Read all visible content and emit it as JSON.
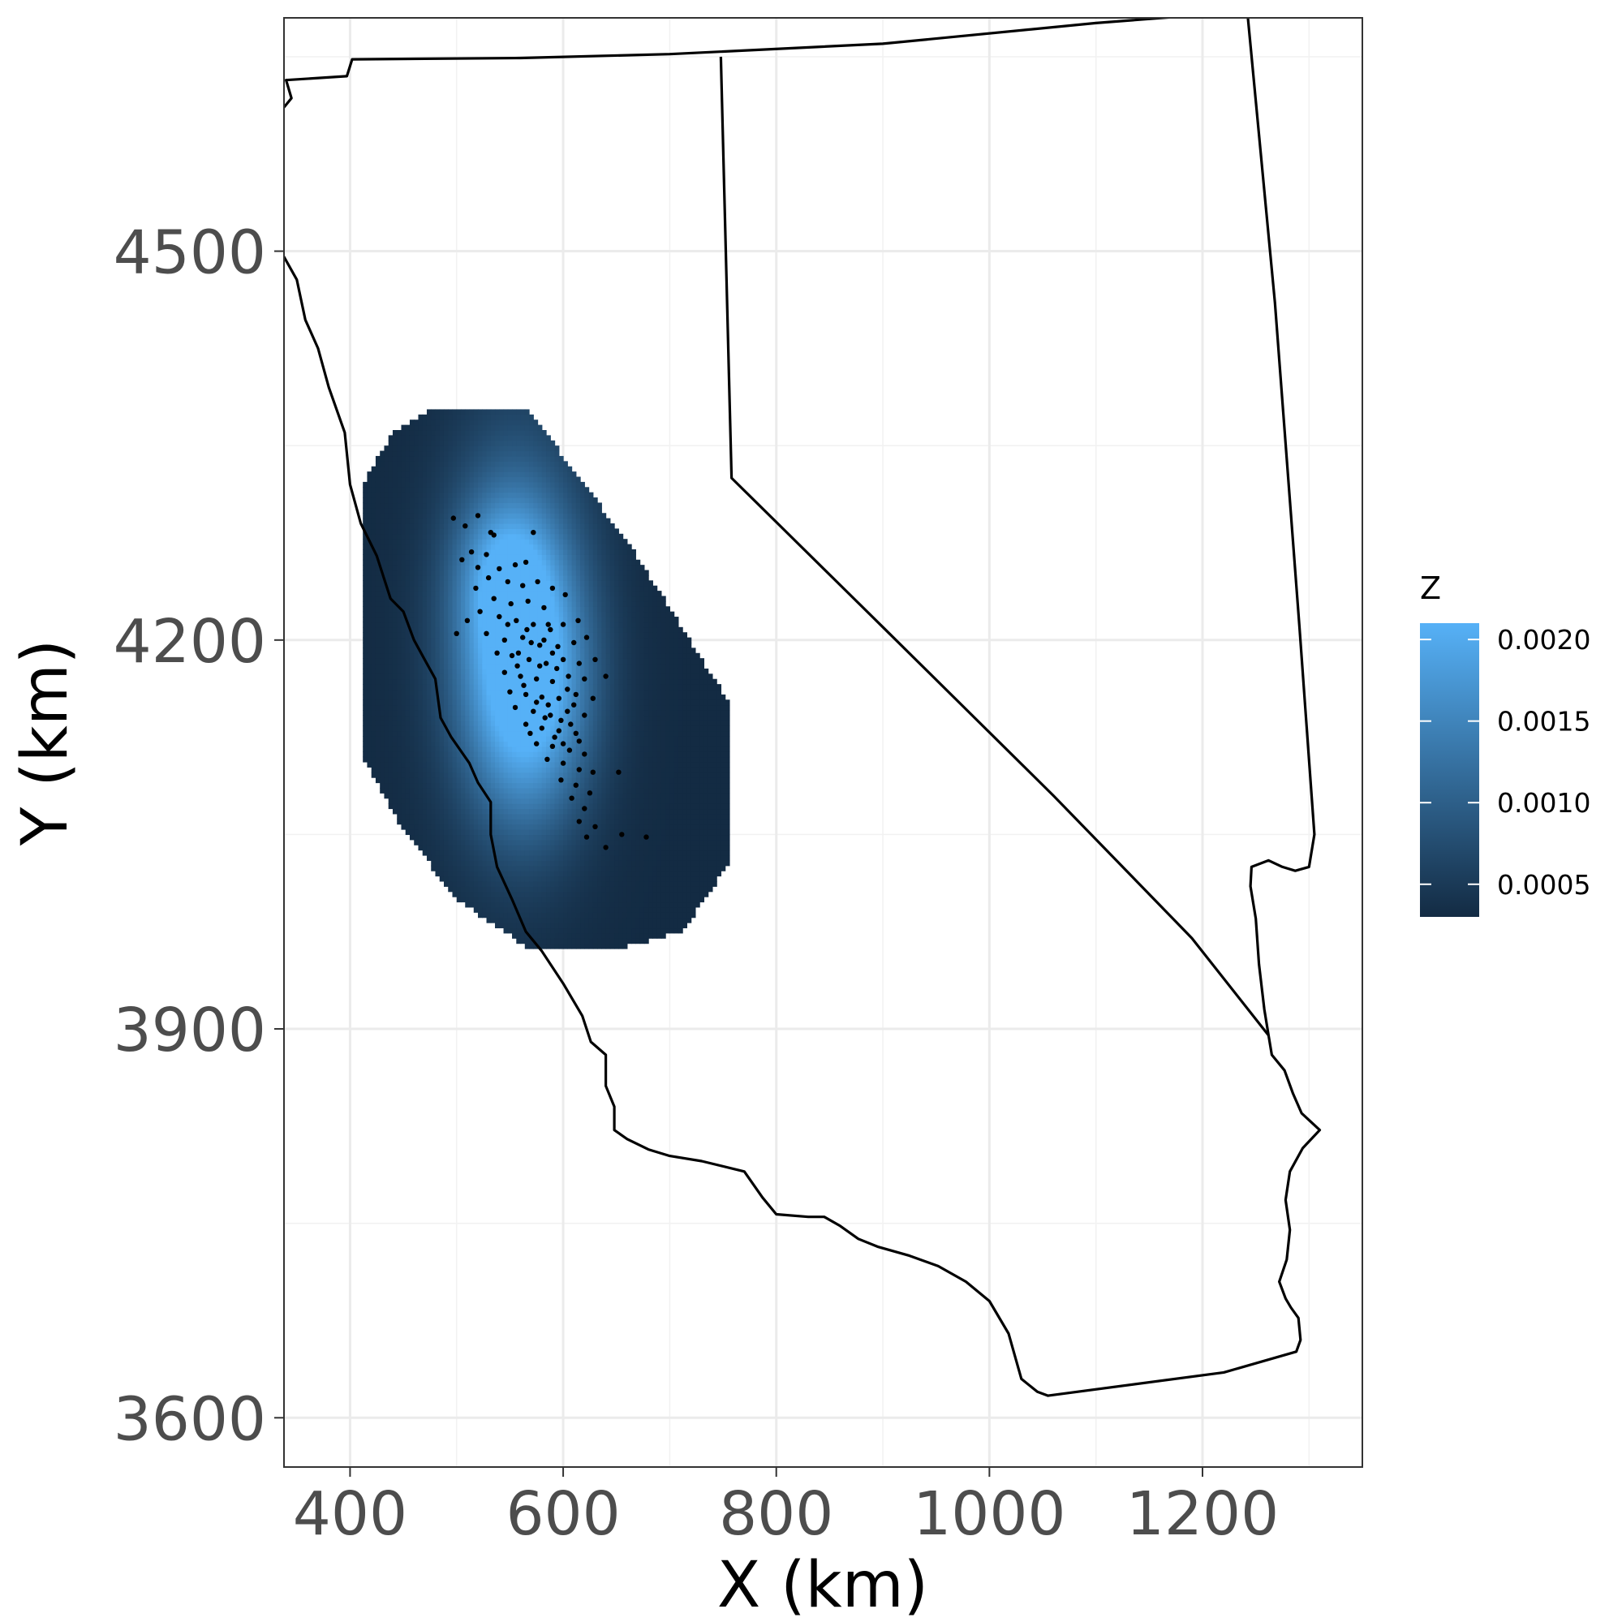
{
  "chart_data": {
    "type": "heatmap",
    "title": "",
    "xlabel": "X (km)",
    "ylabel": "Y (km)",
    "xlim": [
      338,
      1350
    ],
    "ylim": [
      3562,
      4680
    ],
    "x_ticks": [
      400,
      600,
      800,
      1000,
      1200
    ],
    "x_tick_labels": [
      "400",
      "600",
      "800",
      "1000",
      "1200"
    ],
    "y_ticks": [
      3600,
      3900,
      4200,
      4500
    ],
    "y_tick_labels": [
      "3600",
      "3900",
      "4200",
      "4500"
    ],
    "grid": true,
    "legend": {
      "title": "Z",
      "position": "right",
      "range": [
        0.0003,
        0.0021
      ],
      "breaks": [
        0.002,
        0.0015,
        0.001,
        0.0005
      ],
      "labels": [
        "0.0020",
        "0.0015",
        "0.0010",
        "0.0005"
      ],
      "low_color": "#132b43",
      "high_color": "#56b1f7"
    },
    "surface": {
      "region": [
        [
          480,
          4380
        ],
        [
          565,
          4380
        ],
        [
          665,
          4270
        ],
        [
          757,
          4150
        ],
        [
          757,
          4030
        ],
        [
          712,
          3975
        ],
        [
          650,
          3962
        ],
        [
          568,
          3962
        ],
        [
          500,
          4000
        ],
        [
          445,
          4060
        ],
        [
          412,
          4110
        ],
        [
          412,
          4320
        ],
        [
          440,
          4360
        ]
      ],
      "peaks": [
        {
          "x": 555,
          "y": 4210,
          "z": 0.0021,
          "spread_x": 45,
          "spread_y": 100
        },
        {
          "x": 570,
          "y": 4160,
          "z": 0.0019,
          "spread_x": 40,
          "spread_y": 70
        },
        {
          "x": 545,
          "y": 4250,
          "z": 0.0012,
          "spread_x": 30,
          "spread_y": 40
        }
      ],
      "base_z": 0.0003,
      "cell_size_km": 4
    },
    "outline": [
      [
        402,
        4648
      ],
      [
        560,
        4649
      ],
      [
        700,
        4652
      ],
      [
        900,
        4660
      ],
      [
        1100,
        4676
      ],
      [
        1242,
        4685
      ],
      [
        1268,
        4460
      ],
      [
        1291,
        4210
      ],
      [
        1305,
        4050
      ],
      [
        1300,
        4025
      ],
      [
        1287,
        4022
      ],
      [
        1275,
        4025
      ],
      [
        1262,
        4030
      ],
      [
        1246,
        4025
      ],
      [
        1245,
        4010
      ],
      [
        1250,
        3985
      ],
      [
        1253,
        3950
      ],
      [
        1258,
        3915
      ],
      [
        1262,
        3895
      ],
      [
        1265,
        3880
      ],
      [
        1277,
        3868
      ],
      [
        1285,
        3850
      ],
      [
        1293,
        3835
      ],
      [
        1310,
        3822
      ],
      [
        1294,
        3808
      ],
      [
        1282,
        3790
      ],
      [
        1278,
        3768
      ],
      [
        1282,
        3745
      ],
      [
        1279,
        3722
      ],
      [
        1272,
        3705
      ],
      [
        1278,
        3692
      ],
      [
        1283,
        3685
      ],
      [
        1290,
        3677
      ],
      [
        1292,
        3660
      ],
      [
        1288,
        3651
      ],
      [
        1220,
        3635
      ],
      [
        1055,
        3617
      ],
      [
        1045,
        3620
      ],
      [
        1030,
        3630
      ],
      [
        1018,
        3665
      ],
      [
        1000,
        3690
      ],
      [
        978,
        3705
      ],
      [
        952,
        3717
      ],
      [
        925,
        3725
      ],
      [
        895,
        3732
      ],
      [
        877,
        3738
      ],
      [
        860,
        3748
      ],
      [
        845,
        3755
      ],
      [
        830,
        3755
      ],
      [
        800,
        3757
      ],
      [
        787,
        3770
      ],
      [
        770,
        3790
      ],
      [
        730,
        3798
      ],
      [
        700,
        3802
      ],
      [
        680,
        3807
      ],
      [
        660,
        3815
      ],
      [
        648,
        3822
      ],
      [
        648,
        3840
      ],
      [
        640,
        3856
      ],
      [
        640,
        3880
      ],
      [
        626,
        3890
      ],
      [
        618,
        3910
      ],
      [
        600,
        3935
      ],
      [
        580,
        3960
      ],
      [
        565,
        3975
      ],
      [
        552,
        4000
      ],
      [
        538,
        4025
      ],
      [
        532,
        4050
      ],
      [
        532,
        4075
      ],
      [
        520,
        4090
      ],
      [
        512,
        4105
      ],
      [
        495,
        4125
      ],
      [
        485,
        4140
      ],
      [
        480,
        4170
      ],
      [
        470,
        4185
      ],
      [
        460,
        4200
      ],
      [
        450,
        4222
      ],
      [
        438,
        4232
      ],
      [
        425,
        4265
      ],
      [
        410,
        4290
      ],
      [
        400,
        4320
      ],
      [
        395,
        4360
      ],
      [
        380,
        4395
      ],
      [
        370,
        4425
      ],
      [
        358,
        4447
      ],
      [
        350,
        4478
      ],
      [
        335,
        4500
      ],
      [
        325,
        4520
      ],
      [
        320,
        4550
      ],
      [
        322,
        4582
      ],
      [
        335,
        4608
      ],
      [
        345,
        4618
      ],
      [
        340,
        4632
      ],
      [
        397,
        4635
      ],
      [
        402,
        4648
      ]
    ],
    "inner_line": [
      [
        748,
        4650
      ],
      [
        758,
        4325
      ],
      [
        900,
        4210
      ],
      [
        1060,
        4080
      ],
      [
        1190,
        3970
      ],
      [
        1262,
        3895
      ]
    ],
    "points": [
      {
        "x": 497,
        "y": 4294
      },
      {
        "x": 520,
        "y": 4296
      },
      {
        "x": 532,
        "y": 4283
      },
      {
        "x": 535,
        "y": 4281
      },
      {
        "x": 508,
        "y": 4288
      },
      {
        "x": 572,
        "y": 4283
      },
      {
        "x": 514,
        "y": 4268
      },
      {
        "x": 528,
        "y": 4266
      },
      {
        "x": 505,
        "y": 4262
      },
      {
        "x": 520,
        "y": 4256
      },
      {
        "x": 540,
        "y": 4255
      },
      {
        "x": 555,
        "y": 4258
      },
      {
        "x": 565,
        "y": 4260
      },
      {
        "x": 530,
        "y": 4248
      },
      {
        "x": 548,
        "y": 4245
      },
      {
        "x": 518,
        "y": 4240
      },
      {
        "x": 562,
        "y": 4242
      },
      {
        "x": 576,
        "y": 4245
      },
      {
        "x": 590,
        "y": 4240
      },
      {
        "x": 602,
        "y": 4235
      },
      {
        "x": 535,
        "y": 4232
      },
      {
        "x": 551,
        "y": 4228
      },
      {
        "x": 567,
        "y": 4230
      },
      {
        "x": 582,
        "y": 4225
      },
      {
        "x": 522,
        "y": 4222
      },
      {
        "x": 540,
        "y": 4218
      },
      {
        "x": 510,
        "y": 4215
      },
      {
        "x": 556,
        "y": 4215
      },
      {
        "x": 572,
        "y": 4212
      },
      {
        "x": 588,
        "y": 4208
      },
      {
        "x": 600,
        "y": 4212
      },
      {
        "x": 614,
        "y": 4215
      },
      {
        "x": 500,
        "y": 4205
      },
      {
        "x": 528,
        "y": 4205
      },
      {
        "x": 545,
        "y": 4200
      },
      {
        "x": 562,
        "y": 4202
      },
      {
        "x": 578,
        "y": 4196
      },
      {
        "x": 595,
        "y": 4195
      },
      {
        "x": 610,
        "y": 4198
      },
      {
        "x": 622,
        "y": 4202
      },
      {
        "x": 538,
        "y": 4190
      },
      {
        "x": 552,
        "y": 4188
      },
      {
        "x": 568,
        "y": 4185
      },
      {
        "x": 584,
        "y": 4182
      },
      {
        "x": 600,
        "y": 4185
      },
      {
        "x": 615,
        "y": 4182
      },
      {
        "x": 630,
        "y": 4185
      },
      {
        "x": 545,
        "y": 4175
      },
      {
        "x": 560,
        "y": 4172
      },
      {
        "x": 575,
        "y": 4170
      },
      {
        "x": 590,
        "y": 4168
      },
      {
        "x": 605,
        "y": 4172
      },
      {
        "x": 620,
        "y": 4170
      },
      {
        "x": 640,
        "y": 4172
      },
      {
        "x": 550,
        "y": 4160
      },
      {
        "x": 565,
        "y": 4158
      },
      {
        "x": 580,
        "y": 4156
      },
      {
        "x": 596,
        "y": 4155
      },
      {
        "x": 612,
        "y": 4158
      },
      {
        "x": 628,
        "y": 4155
      },
      {
        "x": 555,
        "y": 4148
      },
      {
        "x": 572,
        "y": 4145
      },
      {
        "x": 588,
        "y": 4142
      },
      {
        "x": 604,
        "y": 4145
      },
      {
        "x": 620,
        "y": 4142
      },
      {
        "x": 565,
        "y": 4135
      },
      {
        "x": 580,
        "y": 4132
      },
      {
        "x": 596,
        "y": 4130
      },
      {
        "x": 612,
        "y": 4128
      },
      {
        "x": 575,
        "y": 4120
      },
      {
        "x": 590,
        "y": 4118
      },
      {
        "x": 606,
        "y": 4115
      },
      {
        "x": 620,
        "y": 4112
      },
      {
        "x": 585,
        "y": 4108
      },
      {
        "x": 600,
        "y": 4105
      },
      {
        "x": 615,
        "y": 4100
      },
      {
        "x": 628,
        "y": 4098
      },
      {
        "x": 652,
        "y": 4098
      },
      {
        "x": 598,
        "y": 4092
      },
      {
        "x": 612,
        "y": 4088
      },
      {
        "x": 625,
        "y": 4082
      },
      {
        "x": 608,
        "y": 4078
      },
      {
        "x": 620,
        "y": 4070
      },
      {
        "x": 615,
        "y": 4060
      },
      {
        "x": 630,
        "y": 4056
      },
      {
        "x": 622,
        "y": 4048
      },
      {
        "x": 655,
        "y": 4050
      },
      {
        "x": 678,
        "y": 4048
      },
      {
        "x": 640,
        "y": 4040
      },
      {
        "x": 558,
        "y": 4190
      },
      {
        "x": 570,
        "y": 4198
      },
      {
        "x": 586,
        "y": 4212
      },
      {
        "x": 548,
        "y": 4212
      },
      {
        "x": 594,
        "y": 4178
      },
      {
        "x": 604,
        "y": 4162
      },
      {
        "x": 586,
        "y": 4150
      },
      {
        "x": 578,
        "y": 4180
      },
      {
        "x": 563,
        "y": 4165
      },
      {
        "x": 598,
        "y": 4138
      },
      {
        "x": 610,
        "y": 4150
      },
      {
        "x": 575,
        "y": 4152
      },
      {
        "x": 590,
        "y": 4190
      },
      {
        "x": 582,
        "y": 4200
      },
      {
        "x": 557,
        "y": 4180
      },
      {
        "x": 566,
        "y": 4208
      },
      {
        "x": 592,
        "y": 4125
      },
      {
        "x": 583,
        "y": 4140
      },
      {
        "x": 600,
        "y": 4120
      },
      {
        "x": 607,
        "y": 4135
      },
      {
        "x": 569,
        "y": 4128
      },
      {
        "x": 615,
        "y": 4122
      }
    ]
  }
}
